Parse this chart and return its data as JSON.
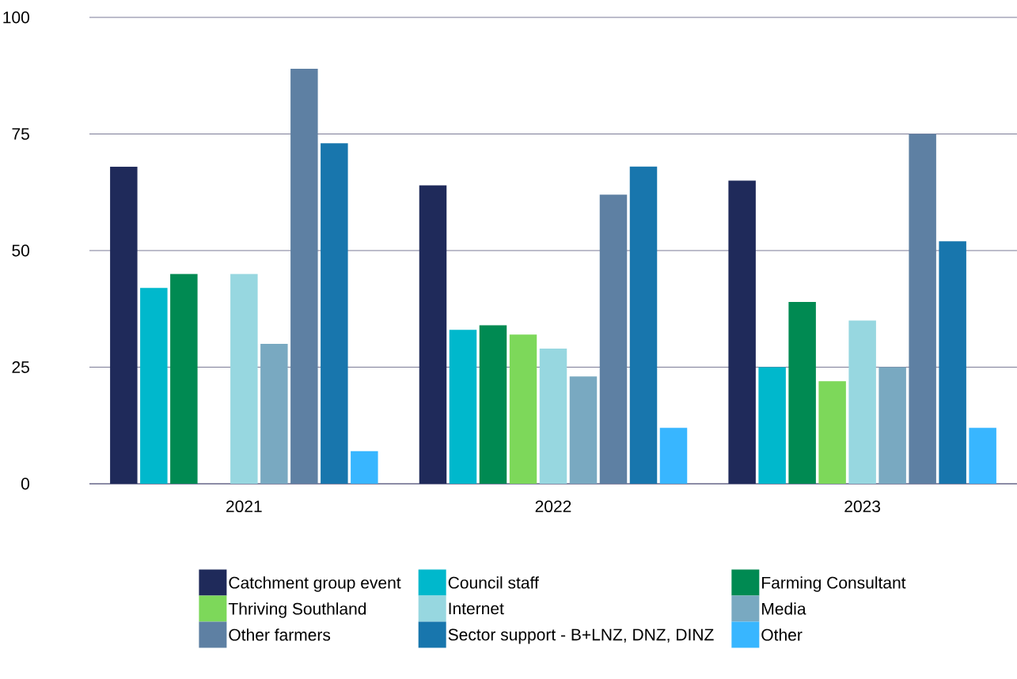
{
  "chart_data": {
    "type": "bar",
    "categories": [
      "2021",
      "2022",
      "2023"
    ],
    "series": [
      {
        "name": "Catchment group event",
        "color": "#1f2a5a",
        "values": [
          68,
          64,
          65
        ]
      },
      {
        "name": "Council staff",
        "color": "#00b8cc",
        "values": [
          42,
          33,
          25
        ]
      },
      {
        "name": "Farming Consultant",
        "color": "#008a52",
        "values": [
          45,
          34,
          39
        ]
      },
      {
        "name": "Thriving Southland",
        "color": "#7dd85a",
        "values": [
          null,
          32,
          22
        ]
      },
      {
        "name": "Internet",
        "color": "#97d7e0",
        "values": [
          45,
          29,
          35
        ]
      },
      {
        "name": "Media",
        "color": "#79a9c1",
        "values": [
          30,
          23,
          25
        ]
      },
      {
        "name": "Other farmers",
        "color": "#5e80a3",
        "values": [
          89,
          62,
          75
        ]
      },
      {
        "name": "Sector support - B+LNZ, DNZ, DINZ",
        "color": "#1876ad",
        "values": [
          73,
          68,
          52
        ]
      },
      {
        "name": "Other",
        "color": "#38b6ff",
        "values": [
          7,
          12,
          12
        ]
      }
    ],
    "ylim": [
      0,
      100
    ],
    "yticks": [
      0,
      25,
      50,
      75,
      100
    ],
    "grid": "y",
    "legend": "bottom"
  }
}
